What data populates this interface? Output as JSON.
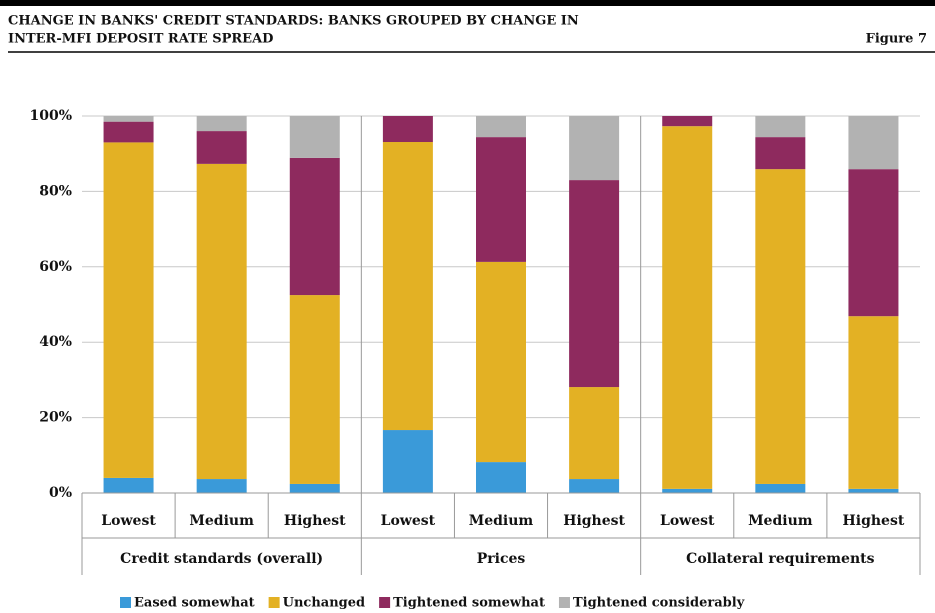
{
  "chart_data": {
    "type": "stacked_bar",
    "title": [
      "CHANGE IN BANKS' CREDIT STANDARDS: BANKS GROUPED BY CHANGE IN",
      "INTER-MFI DEPOSIT RATE SPREAD"
    ],
    "figure_label": "Figure 7",
    "categories": [
      "Lowest",
      "Medium",
      "Highest",
      "Lowest",
      "Medium",
      "Highest",
      "Lowest",
      "Medium",
      "Highest"
    ],
    "groups": [
      "Credit standards (overall)",
      "Prices",
      "Collateral requirements"
    ],
    "series": [
      {
        "name": "Eased somewhat",
        "color": "#3a9ad9",
        "values": [
          4.0,
          3.7,
          2.4,
          16.7,
          8.2,
          3.7,
          1.1,
          2.4,
          1.1
        ]
      },
      {
        "name": "Unchanged",
        "color": "#e3b124",
        "values": [
          89.0,
          83.6,
          50.1,
          76.4,
          53.1,
          24.4,
          96.2,
          83.5,
          45.8
        ]
      },
      {
        "name": "Tightened somewhat",
        "color": "#8e2a5e",
        "values": [
          5.5,
          8.7,
          36.4,
          6.9,
          33.1,
          54.9,
          2.7,
          8.5,
          39.0
        ]
      },
      {
        "name": "Tightened considerably",
        "color": "#b2b2b2",
        "values": [
          1.5,
          4.0,
          11.1,
          0,
          5.6,
          17.0,
          0,
          5.6,
          14.1
        ]
      }
    ],
    "ylim": [
      0,
      100
    ],
    "yticks": [
      {
        "value": 0,
        "label": "0%"
      },
      {
        "value": 20,
        "label": "20%"
      },
      {
        "value": 40,
        "label": "40%"
      },
      {
        "value": 60,
        "label": "60%"
      },
      {
        "value": 80,
        "label": "80%"
      },
      {
        "value": 100,
        "label": "100%"
      }
    ],
    "grid": true
  }
}
